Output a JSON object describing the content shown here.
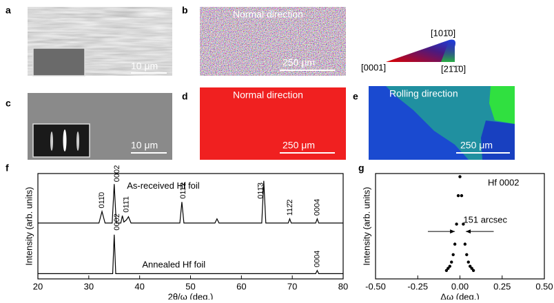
{
  "panels": [
    {
      "label": "a",
      "scale_bar": "10 μm"
    },
    {
      "label": "b",
      "title": "Normal direction",
      "scale_bar": "250 μm"
    },
    {
      "label": "c",
      "scale_bar": "10 μm"
    },
    {
      "label": "d",
      "title": "Normal direction",
      "scale_bar": "250 μm"
    },
    {
      "label": "e",
      "title": "Rolling direction",
      "scale_bar": "250 μm"
    }
  ],
  "color_key": {
    "labels": [
      "[0001]",
      "[101̄0]",
      "[21̄1̄0]"
    ]
  },
  "chart_data": [
    {
      "type": "line",
      "label": "f",
      "xlabel": "2θ/ω (deg.)",
      "ylabel": "Intensity (arb. units)",
      "xlim": [
        20,
        80
      ],
      "xticks": [
        20,
        30,
        40,
        50,
        60,
        70,
        80
      ],
      "ylim": [
        0,
        100
      ],
      "color": "#000000",
      "series": [
        {
          "name": "As-received Hf foil",
          "x": [
            20,
            32,
            32.6,
            33.2,
            34.6,
            35.0,
            35.4,
            36.3,
            36.6,
            36.9,
            37.4,
            37.8,
            38.3,
            47.9,
            48.3,
            48.7,
            54.8,
            55.2,
            55.6,
            64.0,
            64.4,
            64.8,
            69.2,
            69.5,
            69.8,
            74.6,
            74.9,
            75.2,
            80
          ],
          "values": [
            53,
            53,
            64,
            53,
            53,
            90,
            53,
            53,
            60,
            54,
            56,
            59,
            53,
            53,
            73,
            53,
            53,
            57,
            53,
            53,
            93,
            53,
            53,
            57,
            53,
            53,
            57,
            53,
            53
          ]
        },
        {
          "name": "Annealed Hf foil",
          "x": [
            20,
            34.7,
            35.0,
            35.3,
            74.6,
            74.9,
            75.2,
            80
          ],
          "values": [
            5,
            5,
            42,
            5,
            5,
            8,
            5,
            5
          ]
        }
      ],
      "annotations": [
        {
          "text": "011̄0",
          "x": 32.6,
          "y": 67
        },
        {
          "text": "0002",
          "x": 35.6,
          "y": 92
        },
        {
          "text": "011̄1",
          "x": 37.4,
          "y": 63
        },
        {
          "text": "011̄2",
          "x": 48.6,
          "y": 76
        },
        {
          "text": "011̄3",
          "x": 63.8,
          "y": 76
        },
        {
          "text": "112̄2",
          "x": 69.6,
          "y": 60
        },
        {
          "text": "0004",
          "x": 74.9,
          "y": 60
        },
        {
          "text": "0002",
          "x": 35.6,
          "y": 46
        },
        {
          "text": "0004",
          "x": 74.9,
          "y": 11
        }
      ]
    },
    {
      "type": "scatter",
      "label": "g",
      "xlabel": "Δω (deg.)",
      "ylabel": "Intensity (arb. units)",
      "title": "Hf 0002",
      "annotation": "151 arcsec",
      "color": "#000000",
      "xlim": [
        -0.5,
        0.5
      ],
      "ylim": [
        0,
        100
      ],
      "xticks": [
        {
          "value": -0.5,
          "label": "-0.50"
        },
        {
          "value": -0.25,
          "label": "-0.25"
        },
        {
          "value": 0,
          "label": "0.00"
        },
        {
          "value": 0.25,
          "label": "0.25"
        },
        {
          "value": 0.5,
          "label": "0.50"
        }
      ],
      "series": [
        {
          "name": "Hf 0002",
          "x": [
            -0.08,
            -0.07,
            -0.06,
            -0.05,
            -0.04,
            -0.03,
            -0.02,
            -0.01,
            0,
            0.01,
            0.02,
            0.03,
            0.04,
            0.05,
            0.06,
            0.07,
            0.08
          ],
          "values": [
            8,
            10,
            12,
            16,
            23,
            33,
            52,
            79,
            97,
            79,
            52,
            33,
            23,
            16,
            12,
            10,
            8
          ]
        }
      ]
    }
  ]
}
